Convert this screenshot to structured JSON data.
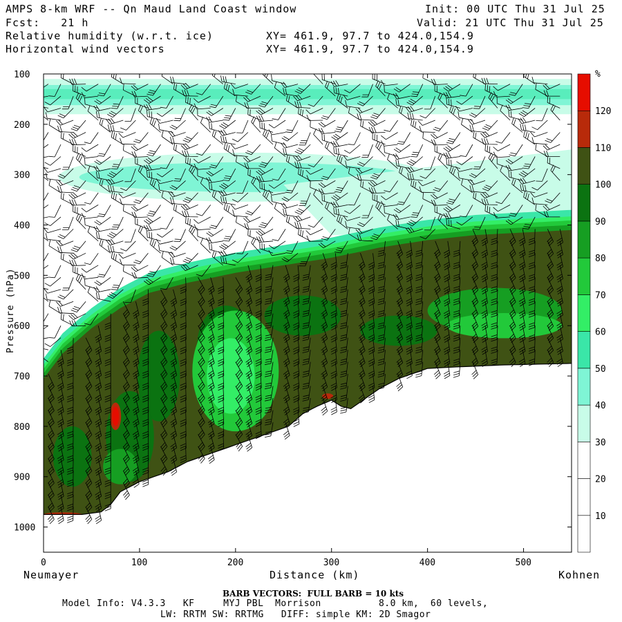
{
  "header": {
    "title": "AMPS 8-km WRF -- Qn Maud Land Coast window",
    "forecast": "Fcst:   21 h",
    "init": "Init: 00 UTC Thu 31 Jul 25",
    "valid": "Valid: 21 UTC Thu 31 Jul 25",
    "field1": "Relative humidity (w.r.t. ice)",
    "field2": "Horizontal wind vectors",
    "xy1": "XY= 461.9, 97.7 to 424.0,154.9",
    "xy2": "XY= 461.9, 97.7 to 424.0,154.9"
  },
  "footer": {
    "barb_note": "BARB VECTORS:  FULL BARB = 10 kts",
    "model_info": "Model Info: V4.3.3   KF     MYJ PBL  Morrison          8.0 km,  60 levels,",
    "physics": "LW: RRTM SW: RRTMG   DIFF: simple KM: 2D Smagor"
  },
  "chart_data": {
    "type": "heatmap",
    "title": "Relative humidity (w.r.t. ice)",
    "overlay": "Horizontal wind vectors (barbs)",
    "xlabel": "Distance (km)",
    "ylabel": "Pressure (hPa)",
    "x_endpoint_labels": [
      "Neumayer",
      "Kohnen"
    ],
    "xlim": [
      0,
      550
    ],
    "ylim": [
      1050,
      100
    ],
    "xticks": [
      0,
      100,
      200,
      300,
      400,
      500
    ],
    "yticks": [
      100,
      200,
      300,
      400,
      500,
      600,
      700,
      800,
      900,
      1000
    ],
    "colorbar": {
      "unit": "%",
      "levels": [
        10,
        20,
        30,
        40,
        50,
        60,
        70,
        80,
        90,
        100,
        110,
        120
      ],
      "colors": [
        "#ffffff",
        "#ffffff",
        "#ffffff",
        "#c8fce8",
        "#7ff5d5",
        "#3ae6a8",
        "#33ee66",
        "#22c93a",
        "#169e22",
        "#0b7311",
        "#3f5214",
        "#b82a0a",
        "#e60d00"
      ]
    },
    "terrain": {
      "x": [
        0,
        5,
        40,
        60,
        70,
        80,
        100,
        130,
        150,
        180,
        210,
        240,
        255,
        270,
        285,
        300,
        310,
        320,
        335,
        350,
        370,
        400,
        430,
        480,
        550
      ],
      "p": [
        975,
        975,
        975,
        970,
        955,
        930,
        910,
        890,
        870,
        850,
        830,
        810,
        800,
        775,
        760,
        748,
        760,
        765,
        745,
        725,
        705,
        685,
        682,
        678,
        675
      ]
    },
    "moist_layer_top": {
      "x": [
        0,
        20,
        50,
        80,
        110,
        150,
        200,
        250,
        300,
        350,
        400,
        450,
        500,
        550
      ],
      "p": [
        690,
        640,
        590,
        550,
        520,
        500,
        480,
        465,
        450,
        430,
        415,
        405,
        400,
        395
      ]
    },
    "dry_layer_top": {
      "x": [
        0,
        50,
        100,
        150,
        200,
        250,
        300,
        350,
        400,
        450,
        500,
        550
      ],
      "p": [
        720,
        680,
        630,
        590,
        560,
        540,
        520,
        500,
        470,
        450,
        430,
        420
      ]
    },
    "upper_moist_band_hpa": [
      110,
      180
    ],
    "mid_moist_band": {
      "x_range": [
        30,
        390
      ],
      "p_range": [
        270,
        340
      ]
    },
    "saturated_spots": [
      {
        "x": 75,
        "p": 780,
        "rh": 120
      },
      {
        "x": 296,
        "p": 740,
        "rh": 115
      },
      {
        "x": 20,
        "p": 975,
        "rh": 115
      }
    ]
  }
}
